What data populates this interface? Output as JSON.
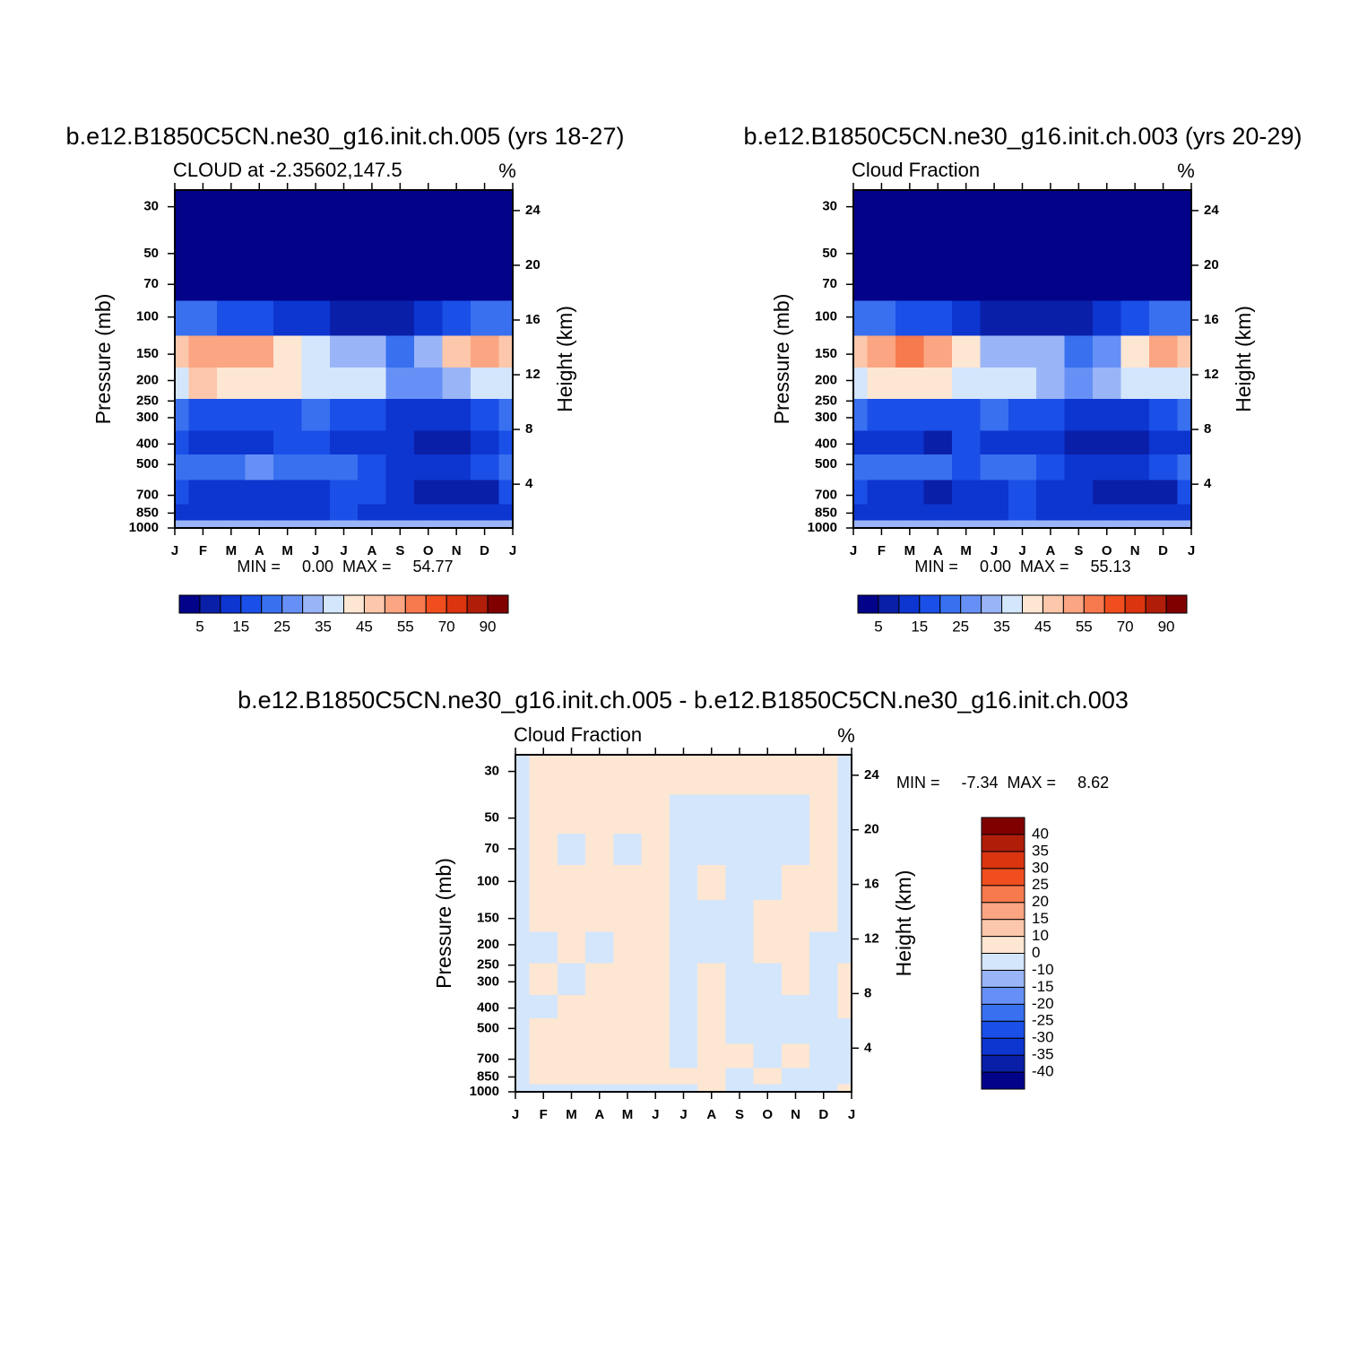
{
  "chart_data": [
    {
      "type": "contour",
      "title": "b.e12.B1850C5CN.ne30_g16.init.ch.005 (yrs 18-27)",
      "subtitle": "CLOUD at -2.35602,147.5",
      "units": "%",
      "ylabel": "Pressure (mb)",
      "y2label": "Height (km)",
      "categories": [
        "J",
        "F",
        "M",
        "A",
        "M",
        "J",
        "J",
        "A",
        "S",
        "O",
        "N",
        "D",
        "J"
      ],
      "y": [
        30,
        50,
        70,
        100,
        150,
        200,
        300,
        400,
        500,
        700,
        850,
        1000
      ],
      "z": [
        [
          2,
          2,
          2,
          2,
          2,
          2,
          2,
          2,
          2,
          2,
          2,
          2,
          2
        ],
        [
          2,
          2,
          2,
          2,
          2,
          2,
          2,
          2,
          2,
          2,
          2,
          2,
          2
        ],
        [
          4,
          4,
          4,
          4,
          4,
          4,
          4,
          4,
          4,
          4,
          4,
          4,
          4
        ],
        [
          22,
          20,
          18,
          15,
          12,
          10,
          8,
          8,
          6,
          10,
          15,
          20,
          22
        ],
        [
          48,
          53,
          54,
          50,
          42,
          35,
          30,
          30,
          22,
          32,
          45,
          50,
          48
        ],
        [
          38,
          45,
          44,
          42,
          40,
          38,
          36,
          37,
          25,
          28,
          33,
          35,
          38
        ],
        [
          20,
          18,
          17,
          17,
          18,
          20,
          18,
          15,
          12,
          10,
          12,
          15,
          20
        ],
        [
          15,
          12,
          12,
          14,
          16,
          15,
          14,
          12,
          10,
          7,
          9,
          12,
          15
        ],
        [
          20,
          22,
          20,
          25,
          20,
          20,
          23,
          18,
          14,
          12,
          14,
          15,
          20
        ],
        [
          15,
          14,
          13,
          12,
          10,
          14,
          18,
          15,
          12,
          9,
          8,
          8,
          15
        ],
        [
          10,
          12,
          12,
          11,
          10,
          14,
          16,
          14,
          12,
          10,
          10,
          10,
          10
        ],
        [
          30,
          30,
          30,
          30,
          30,
          30,
          30,
          30,
          30,
          30,
          30,
          30,
          30
        ]
      ],
      "ylog": true,
      "ylim": [
        1000,
        25
      ],
      "yticks": [
        30,
        50,
        70,
        100,
        150,
        200,
        250,
        300,
        400,
        500,
        700,
        850,
        1000
      ],
      "y2lim": [
        0.8,
        25.5
      ],
      "y2ticks": [
        4,
        8,
        12,
        16,
        20,
        24
      ],
      "stats": {
        "min_label": "MIN =",
        "min": {
          "value": 0,
          "label": "0.00"
        },
        "max_label": "MAX =",
        "max": 54.77
      },
      "levels": [
        5,
        10,
        15,
        20,
        25,
        30,
        35,
        40,
        45,
        50,
        55,
        60,
        70,
        80,
        90
      ],
      "colors": [
        "#03038a",
        "#0a1fa8",
        "#0d35d0",
        "#1a4fe8",
        "#3870f0",
        "#6690f5",
        "#9ab5f7",
        "#d4e6fc",
        "#fde6d2",
        "#fcc7aa",
        "#fba582",
        "#f7794e",
        "#f04e1e",
        "#db3510",
        "#b01e0a",
        "#800000"
      ]
    },
    {
      "type": "contour",
      "title": "b.e12.B1850C5CN.ne30_g16.init.ch.003 (yrs 20-29)",
      "subtitle": "Cloud Fraction",
      "units": "%",
      "ylabel": "Pressure (mb)",
      "y2label": "Height (km)",
      "categories": [
        "J",
        "F",
        "M",
        "A",
        "M",
        "J",
        "J",
        "A",
        "S",
        "O",
        "N",
        "D",
        "J"
      ],
      "y": [
        30,
        50,
        70,
        100,
        150,
        200,
        300,
        400,
        500,
        700,
        850,
        1000
      ],
      "z": [
        [
          2,
          2,
          2,
          2,
          2,
          2,
          2,
          2,
          2,
          2,
          2,
          2,
          2
        ],
        [
          2,
          2,
          2,
          2,
          2,
          2,
          2,
          2,
          2,
          2,
          2,
          2,
          2
        ],
        [
          4,
          4,
          4,
          4,
          4,
          4,
          4,
          4,
          4,
          4,
          4,
          4,
          4
        ],
        [
          22,
          20,
          18,
          15,
          12,
          9,
          8,
          8,
          6,
          10,
          15,
          20,
          22
        ],
        [
          47,
          53,
          55,
          50,
          40,
          30,
          34,
          30,
          22,
          28,
          42,
          50,
          47
        ],
        [
          36,
          44,
          42,
          40,
          35,
          36,
          38,
          34,
          25,
          30,
          35,
          38,
          36
        ],
        [
          20,
          18,
          17,
          16,
          17,
          20,
          18,
          15,
          12,
          10,
          12,
          15,
          20
        ],
        [
          14,
          12,
          10,
          8,
          15,
          14,
          12,
          10,
          7,
          6,
          9,
          12,
          14
        ],
        [
          20,
          22,
          20,
          24,
          19,
          20,
          24,
          18,
          14,
          12,
          14,
          15,
          20
        ],
        [
          15,
          14,
          10,
          8,
          14,
          12,
          16,
          14,
          10,
          8,
          9,
          8,
          15
        ],
        [
          10,
          12,
          12,
          11,
          10,
          14,
          16,
          14,
          12,
          10,
          10,
          10,
          10
        ],
        [
          30,
          30,
          30,
          30,
          30,
          30,
          30,
          30,
          30,
          30,
          30,
          30,
          30
        ]
      ],
      "ylog": true,
      "ylim": [
        1000,
        25
      ],
      "yticks": [
        30,
        50,
        70,
        100,
        150,
        200,
        250,
        300,
        400,
        500,
        700,
        850,
        1000
      ],
      "y2lim": [
        0.8,
        25.5
      ],
      "y2ticks": [
        4,
        8,
        12,
        16,
        20,
        24
      ],
      "stats": {
        "min_label": "MIN =",
        "min": {
          "value": 0,
          "label": "0.00"
        },
        "max_label": "MAX =",
        "max": 55.13
      },
      "levels": [
        5,
        10,
        15,
        20,
        25,
        30,
        35,
        40,
        45,
        50,
        55,
        60,
        70,
        80,
        90
      ],
      "colors": [
        "#03038a",
        "#0a1fa8",
        "#0d35d0",
        "#1a4fe8",
        "#3870f0",
        "#6690f5",
        "#9ab5f7",
        "#d4e6fc",
        "#fde6d2",
        "#fcc7aa",
        "#fba582",
        "#f7794e",
        "#f04e1e",
        "#db3510",
        "#b01e0a",
        "#800000"
      ]
    },
    {
      "type": "contour",
      "title": "b.e12.B1850C5CN.ne30_g16.init.ch.005 - b.e12.B1850C5CN.ne30_g16.init.ch.003",
      "subtitle": "Cloud Fraction",
      "units": "%",
      "ylabel": "Pressure (mb)",
      "y2label": "Height (km)",
      "categories": [
        "J",
        "F",
        "M",
        "A",
        "M",
        "J",
        "J",
        "A",
        "S",
        "O",
        "N",
        "D",
        "J"
      ],
      "y": [
        30,
        50,
        70,
        100,
        150,
        200,
        300,
        400,
        500,
        700,
        850,
        1000
      ],
      "z": [
        [
          -1,
          1,
          1,
          1,
          1,
          1,
          1,
          1,
          1,
          1,
          1,
          1,
          -1
        ],
        [
          -1,
          1,
          1,
          1,
          1,
          1,
          -1,
          -1,
          -1,
          -1,
          -1,
          1,
          -1
        ],
        [
          -1,
          1,
          -1,
          1,
          -1,
          1,
          -1,
          -1,
          -1,
          -1,
          -1,
          1,
          -1
        ],
        [
          -1,
          1,
          1,
          1,
          1,
          1,
          -1,
          1,
          -1,
          -1,
          1,
          1,
          -1
        ],
        [
          -2,
          1,
          1,
          1,
          1,
          1,
          -1,
          -1,
          -1,
          1,
          1,
          1,
          -1
        ],
        [
          -2,
          -1,
          1,
          -1,
          1,
          1,
          -1,
          -1,
          -1,
          1,
          1,
          -1,
          -1
        ],
        [
          -2,
          1,
          -1,
          1,
          1,
          1,
          -1,
          1,
          -1,
          -1,
          1,
          -1,
          1
        ],
        [
          -2,
          -1,
          1,
          1,
          1,
          1,
          -1,
          1,
          -1,
          -1,
          -1,
          -1,
          1
        ],
        [
          -1,
          1,
          1,
          1,
          1,
          1,
          -1,
          1,
          -1,
          -1,
          -1,
          -1,
          -1
        ],
        [
          -1,
          1,
          1,
          1,
          1,
          1,
          -1,
          1,
          1,
          -1,
          1,
          -1,
          -1
        ],
        [
          -1,
          1,
          1,
          1,
          1,
          1,
          1,
          1,
          -1,
          1,
          -1,
          -1,
          -1
        ],
        [
          -1,
          -1,
          -1,
          -1,
          -1,
          -1,
          -1,
          1,
          -1,
          -1,
          -1,
          -1,
          1
        ]
      ],
      "ylog": true,
      "ylim": [
        1000,
        25
      ],
      "yticks": [
        30,
        50,
        70,
        100,
        150,
        200,
        250,
        300,
        400,
        500,
        700,
        850,
        1000
      ],
      "y2lim": [
        0.8,
        25.5
      ],
      "y2ticks": [
        4,
        8,
        12,
        16,
        20,
        24
      ],
      "stats": {
        "min_label": "MIN =",
        "min": -7.34,
        "max_label": "MAX =",
        "max": 8.62
      },
      "levels": [
        -40,
        -35,
        -30,
        -25,
        -20,
        -15,
        -10,
        0,
        10,
        15,
        20,
        25,
        30,
        35,
        40
      ],
      "colors": [
        "#03038a",
        "#0a1fa8",
        "#0d35d0",
        "#1a4fe8",
        "#3870f0",
        "#6690f5",
        "#9ab5f7",
        "#d4e6fc",
        "#fde6d2",
        "#fcc7aa",
        "#fba582",
        "#f7794e",
        "#f04e1e",
        "#db3510",
        "#b01e0a",
        "#800000"
      ]
    }
  ]
}
